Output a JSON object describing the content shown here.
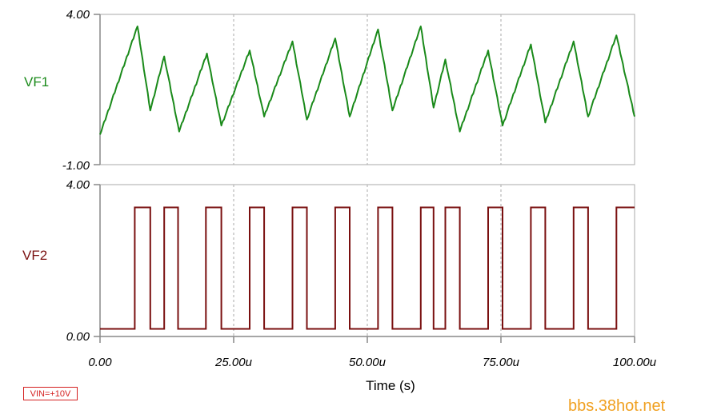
{
  "badge": "VIN=+10V",
  "watermark": "bbs.38hot.net",
  "colors": {
    "VF1": "#1a8a1a",
    "VF2": "#7a1010",
    "grid": "#aaaaaa",
    "axis": "#888888"
  },
  "chart_data": [
    {
      "type": "line",
      "signal_label": "VF1",
      "ylim": [
        -1.0,
        4.0
      ],
      "y_ticks": [
        "4.00",
        "-1.00"
      ],
      "xlim": [
        0,
        100
      ],
      "x_gridlines": [
        25,
        50,
        75
      ],
      "series": [
        {
          "name": "VF1",
          "x": [
            0,
            7.0,
            9.4,
            12.0,
            14.8,
            20.0,
            22.7,
            28.0,
            30.7,
            36.0,
            38.7,
            44.0,
            46.7,
            52.0,
            54.7,
            60.0,
            62.4,
            64.6,
            67.3,
            72.6,
            75.3,
            80.6,
            83.3,
            88.6,
            91.3,
            96.6,
            100
          ],
          "y": [
            0.0,
            3.6,
            0.8,
            2.6,
            0.1,
            2.7,
            0.3,
            2.8,
            0.6,
            3.1,
            0.5,
            3.2,
            0.6,
            3.5,
            0.8,
            3.6,
            0.9,
            2.5,
            0.1,
            2.8,
            0.3,
            3.0,
            0.4,
            3.1,
            0.6,
            3.3,
            0.6
          ]
        }
      ]
    },
    {
      "type": "line",
      "signal_label": "VF2",
      "ylim": [
        0.0,
        4.0
      ],
      "y_ticks": [
        "4.00",
        "0.00"
      ],
      "xlim": [
        0,
        100
      ],
      "x_ticks": [
        "0.00",
        "25.00u",
        "50.00u",
        "75.00u",
        "100.00u"
      ],
      "x_gridlines": [
        25,
        50,
        75
      ],
      "xlabel": "Time (s)",
      "series": [
        {
          "name": "VF2",
          "low": 0.2,
          "high": 3.4,
          "pulses": [
            [
              6.5,
              9.4
            ],
            [
              12.0,
              14.6
            ],
            [
              19.8,
              22.7
            ],
            [
              28.0,
              30.7
            ],
            [
              36.0,
              38.7
            ],
            [
              44.0,
              46.7
            ],
            [
              52.0,
              54.7
            ],
            [
              60.0,
              62.4
            ],
            [
              64.6,
              67.3
            ],
            [
              72.6,
              75.3
            ],
            [
              80.6,
              83.3
            ],
            [
              88.6,
              91.3
            ],
            [
              96.6,
              100
            ]
          ]
        }
      ]
    }
  ]
}
